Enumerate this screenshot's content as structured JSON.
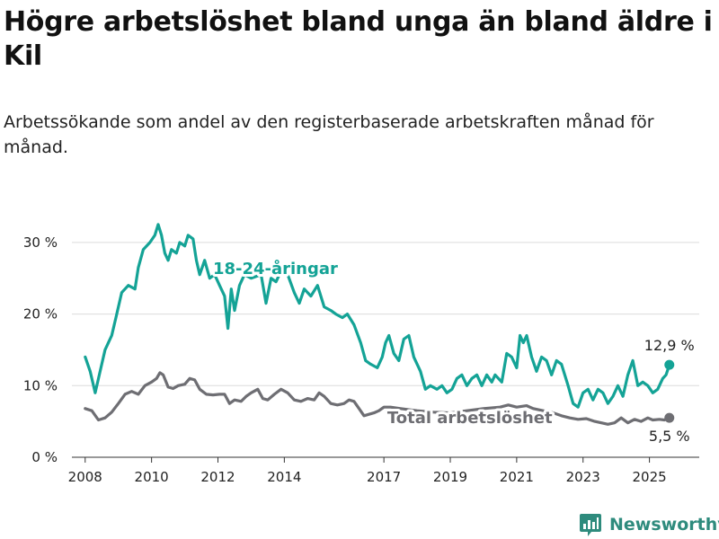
{
  "title": "Högre arbetslöshet bland unga än bland äldre i Kil",
  "subtitle": "Arbetssökande som andel av den registerbaserade arbetskraften månad för månad.",
  "brand": {
    "name": "Newsworthy",
    "logo_icon": "bar-chart-icon"
  },
  "chart_data": {
    "type": "line",
    "xlabel": "",
    "ylabel": "",
    "ylim": [
      0,
      35
    ],
    "yticks": [
      0,
      10,
      20,
      30
    ],
    "ytick_labels": [
      "0 %",
      "10 %",
      "20 %",
      "30 %"
    ],
    "xticks": [
      2008,
      2010,
      2012,
      2014,
      2017,
      2019,
      2021,
      2023,
      2025
    ],
    "xtick_labels": [
      "2008",
      "2010",
      "2012",
      "2014",
      "2017",
      "2019",
      "2021",
      "2023",
      "2025"
    ],
    "grid": "horizontal",
    "series": [
      {
        "name": "18-24-åringar",
        "color": "#14a396",
        "end_label": "12,9 %",
        "points": [
          [
            2008.0,
            14.0
          ],
          [
            2008.15,
            12.0
          ],
          [
            2008.3,
            9.0
          ],
          [
            2008.45,
            12.0
          ],
          [
            2008.6,
            15.0
          ],
          [
            2008.8,
            17.0
          ],
          [
            2008.95,
            20.0
          ],
          [
            2009.1,
            23.0
          ],
          [
            2009.3,
            24.0
          ],
          [
            2009.5,
            23.5
          ],
          [
            2009.6,
            26.5
          ],
          [
            2009.75,
            29.0
          ],
          [
            2009.95,
            30.0
          ],
          [
            2010.1,
            31.0
          ],
          [
            2010.2,
            32.5
          ],
          [
            2010.3,
            31.0
          ],
          [
            2010.4,
            28.5
          ],
          [
            2010.5,
            27.5
          ],
          [
            2010.6,
            29.0
          ],
          [
            2010.75,
            28.5
          ],
          [
            2010.85,
            30.0
          ],
          [
            2011.0,
            29.5
          ],
          [
            2011.1,
            31.0
          ],
          [
            2011.25,
            30.5
          ],
          [
            2011.35,
            27.5
          ],
          [
            2011.45,
            25.5
          ],
          [
            2011.6,
            27.5
          ],
          [
            2011.75,
            25.0
          ],
          [
            2011.9,
            25.5
          ],
          [
            2012.05,
            24.0
          ],
          [
            2012.2,
            22.5
          ],
          [
            2012.3,
            18.0
          ],
          [
            2012.4,
            23.5
          ],
          [
            2012.5,
            20.5
          ],
          [
            2012.65,
            24.0
          ],
          [
            2012.8,
            25.5
          ],
          [
            2013.0,
            25.0
          ],
          [
            2013.3,
            25.5
          ],
          [
            2013.45,
            21.5
          ],
          [
            2013.6,
            25.0
          ],
          [
            2013.75,
            24.5
          ],
          [
            2013.9,
            26.0
          ],
          [
            2014.1,
            25.5
          ],
          [
            2014.3,
            23.0
          ],
          [
            2014.45,
            21.5
          ],
          [
            2014.6,
            23.5
          ],
          [
            2014.8,
            22.5
          ],
          [
            2015.0,
            24.0
          ],
          [
            2015.2,
            21.0
          ],
          [
            2015.4,
            20.5
          ],
          [
            2015.55,
            20.0
          ],
          [
            2015.75,
            19.5
          ],
          [
            2015.9,
            20.0
          ],
          [
            2016.1,
            18.5
          ],
          [
            2016.3,
            16.0
          ],
          [
            2016.45,
            13.5
          ],
          [
            2016.6,
            13.0
          ],
          [
            2016.8,
            12.5
          ],
          [
            2016.95,
            14.0
          ],
          [
            2017.05,
            16.0
          ],
          [
            2017.15,
            17.0
          ],
          [
            2017.3,
            14.5
          ],
          [
            2017.45,
            13.5
          ],
          [
            2017.6,
            16.5
          ],
          [
            2017.75,
            17.0
          ],
          [
            2017.9,
            14.0
          ],
          [
            2018.1,
            12.0
          ],
          [
            2018.25,
            9.5
          ],
          [
            2018.4,
            10.0
          ],
          [
            2018.6,
            9.5
          ],
          [
            2018.75,
            10.0
          ],
          [
            2018.9,
            9.0
          ],
          [
            2019.05,
            9.5
          ],
          [
            2019.2,
            11.0
          ],
          [
            2019.35,
            11.5
          ],
          [
            2019.5,
            10.0
          ],
          [
            2019.65,
            11.0
          ],
          [
            2019.8,
            11.5
          ],
          [
            2019.95,
            10.0
          ],
          [
            2020.1,
            11.5
          ],
          [
            2020.25,
            10.5
          ],
          [
            2020.35,
            11.5
          ],
          [
            2020.55,
            10.5
          ],
          [
            2020.7,
            14.5
          ],
          [
            2020.85,
            14.0
          ],
          [
            2021.0,
            12.5
          ],
          [
            2021.1,
            17.0
          ],
          [
            2021.2,
            16.0
          ],
          [
            2021.3,
            17.0
          ],
          [
            2021.45,
            14.0
          ],
          [
            2021.6,
            12.0
          ],
          [
            2021.75,
            14.0
          ],
          [
            2021.9,
            13.5
          ],
          [
            2022.05,
            11.5
          ],
          [
            2022.2,
            13.5
          ],
          [
            2022.35,
            13.0
          ],
          [
            2022.55,
            10.0
          ],
          [
            2022.7,
            7.5
          ],
          [
            2022.85,
            7.0
          ],
          [
            2023.0,
            9.0
          ],
          [
            2023.15,
            9.5
          ],
          [
            2023.3,
            8.0
          ],
          [
            2023.45,
            9.5
          ],
          [
            2023.6,
            9.0
          ],
          [
            2023.75,
            7.5
          ],
          [
            2023.9,
            8.5
          ],
          [
            2024.05,
            10.0
          ],
          [
            2024.2,
            8.5
          ],
          [
            2024.35,
            11.5
          ],
          [
            2024.5,
            13.5
          ],
          [
            2024.65,
            10.0
          ],
          [
            2024.8,
            10.5
          ],
          [
            2024.95,
            10.0
          ],
          [
            2025.1,
            9.0
          ],
          [
            2025.25,
            9.5
          ],
          [
            2025.4,
            11.0
          ],
          [
            2025.5,
            11.5
          ],
          [
            2025.6,
            12.9
          ]
        ]
      },
      {
        "name": "Total arbetslöshet",
        "color": "#6e6e73",
        "end_label": "5,5 %",
        "points": [
          [
            2008.0,
            6.8
          ],
          [
            2008.2,
            6.5
          ],
          [
            2008.4,
            5.2
          ],
          [
            2008.6,
            5.5
          ],
          [
            2008.8,
            6.3
          ],
          [
            2009.0,
            7.5
          ],
          [
            2009.2,
            8.8
          ],
          [
            2009.4,
            9.2
          ],
          [
            2009.6,
            8.8
          ],
          [
            2009.8,
            10.0
          ],
          [
            2010.0,
            10.5
          ],
          [
            2010.15,
            11.0
          ],
          [
            2010.25,
            11.8
          ],
          [
            2010.35,
            11.5
          ],
          [
            2010.5,
            9.8
          ],
          [
            2010.65,
            9.6
          ],
          [
            2010.8,
            10.0
          ],
          [
            2011.0,
            10.2
          ],
          [
            2011.15,
            11.0
          ],
          [
            2011.3,
            10.8
          ],
          [
            2011.45,
            9.5
          ],
          [
            2011.65,
            8.8
          ],
          [
            2011.85,
            8.7
          ],
          [
            2012.05,
            8.8
          ],
          [
            2012.2,
            8.8
          ],
          [
            2012.35,
            7.5
          ],
          [
            2012.5,
            8.0
          ],
          [
            2012.7,
            7.8
          ],
          [
            2012.85,
            8.5
          ],
          [
            2013.0,
            9.0
          ],
          [
            2013.2,
            9.5
          ],
          [
            2013.35,
            8.2
          ],
          [
            2013.5,
            8.0
          ],
          [
            2013.7,
            8.8
          ],
          [
            2013.9,
            9.5
          ],
          [
            2014.1,
            9.0
          ],
          [
            2014.3,
            8.0
          ],
          [
            2014.5,
            7.8
          ],
          [
            2014.7,
            8.2
          ],
          [
            2014.9,
            8.0
          ],
          [
            2015.05,
            9.0
          ],
          [
            2015.2,
            8.5
          ],
          [
            2015.4,
            7.5
          ],
          [
            2015.6,
            7.3
          ],
          [
            2015.8,
            7.5
          ],
          [
            2015.95,
            8.0
          ],
          [
            2016.1,
            7.8
          ],
          [
            2016.25,
            6.8
          ],
          [
            2016.4,
            5.8
          ],
          [
            2016.55,
            6.0
          ],
          [
            2016.7,
            6.2
          ],
          [
            2016.85,
            6.5
          ],
          [
            2017.0,
            7.0
          ],
          [
            2017.2,
            7.0
          ],
          [
            2017.5,
            6.8
          ],
          [
            2018.0,
            6.5
          ],
          [
            2018.5,
            6.3
          ],
          [
            2019.0,
            6.2
          ],
          [
            2019.5,
            6.5
          ],
          [
            2020.0,
            6.8
          ],
          [
            2020.5,
            7.0
          ],
          [
            2020.75,
            7.3
          ],
          [
            2021.0,
            7.0
          ],
          [
            2021.3,
            7.2
          ],
          [
            2021.5,
            6.8
          ],
          [
            2021.8,
            6.5
          ],
          [
            2022.1,
            6.2
          ],
          [
            2022.35,
            5.8
          ],
          [
            2022.6,
            5.5
          ],
          [
            2022.85,
            5.3
          ],
          [
            2023.1,
            5.4
          ],
          [
            2023.35,
            5.0
          ],
          [
            2023.55,
            4.8
          ],
          [
            2023.75,
            4.6
          ],
          [
            2023.95,
            4.8
          ],
          [
            2024.15,
            5.5
          ],
          [
            2024.35,
            4.8
          ],
          [
            2024.55,
            5.3
          ],
          [
            2024.75,
            5.0
          ],
          [
            2024.95,
            5.5
          ],
          [
            2025.1,
            5.2
          ],
          [
            2025.3,
            5.3
          ],
          [
            2025.45,
            5.2
          ],
          [
            2025.6,
            5.5
          ]
        ]
      }
    ]
  }
}
